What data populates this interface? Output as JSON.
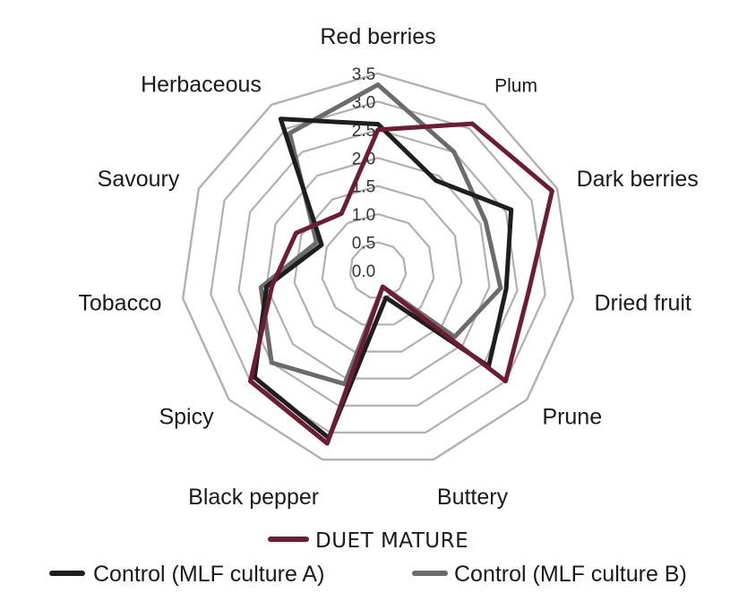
{
  "chart_data": {
    "type": "radar",
    "categories": [
      "Red berries",
      "Plum",
      "Dark berries",
      "Dried fruit",
      "Prune",
      "Buttery",
      "Black pepper",
      "Spicy",
      "Tobacco",
      "Savoury",
      "Herbaceous"
    ],
    "ticks": [
      "0.0",
      "0.5",
      "1.0",
      "1.5",
      "2.0",
      "2.5",
      "3.0",
      "3.5"
    ],
    "rmax": 3.5,
    "series": [
      {
        "name": "Control (MLF culture B)",
        "color": "#6b6b6b",
        "values": [
          3.3,
          2.5,
          2.1,
          2.2,
          1.8,
          0.3,
          2.1,
          2.5,
          2.1,
          1.2,
          2.9
        ]
      },
      {
        "name": "Control (MLF culture A)",
        "color": "#1e1e1e",
        "values": [
          2.6,
          1.9,
          2.6,
          2.3,
          2.6,
          0.5,
          3.1,
          2.9,
          2.0,
          1.1,
          3.2
        ]
      },
      {
        "name": "DUET MATURE",
        "color": "#6e1c33",
        "values": [
          2.5,
          3.1,
          3.4,
          2.7,
          3.0,
          0.3,
          3.2,
          3.0,
          1.9,
          1.6,
          1.2
        ]
      }
    ],
    "legend_order": [
      "DUET MATURE",
      "Control (MLF culture A)",
      "Control (MLF culture B)"
    ],
    "legend_position": "bottom",
    "grid": true,
    "grid_color": "#b0b0b0"
  }
}
